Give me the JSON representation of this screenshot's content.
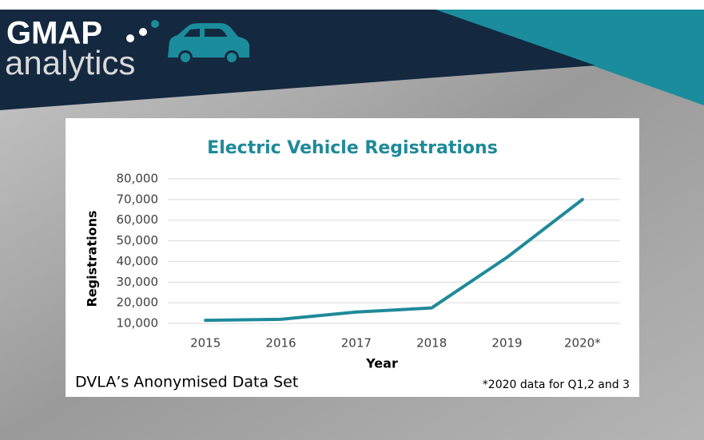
{
  "logo": {
    "brand": "GMAP",
    "name": "analytics"
  },
  "chart_data": {
    "type": "line",
    "title": "Electric Vehicle Registrations",
    "x_label": "Year",
    "y_label": "Registrations",
    "categories": [
      "2015",
      "2016",
      "2017",
      "2018",
      "2019",
      "2020*"
    ],
    "series": [
      {
        "name": "Registrations",
        "color": "#1e8a99",
        "values": [
          11500,
          12000,
          15500,
          17500,
          42000,
          70000
        ]
      }
    ],
    "ylim": [
      10000,
      80000
    ],
    "yticks": [
      {
        "value": 10000,
        "label": "10,000"
      },
      {
        "value": 20000,
        "label": "20,000"
      },
      {
        "value": 30000,
        "label": "30,000"
      },
      {
        "value": 40000,
        "label": "40,000"
      },
      {
        "value": 50000,
        "label": "50,000"
      },
      {
        "value": 60000,
        "label": "60,000"
      },
      {
        "value": 70000,
        "label": "70,000"
      },
      {
        "value": 80000,
        "label": "80,000"
      }
    ],
    "grid": true,
    "source": "DVLA’s Anonymised Data Set",
    "footnote": "*2020 data for Q1,2 and 3"
  }
}
